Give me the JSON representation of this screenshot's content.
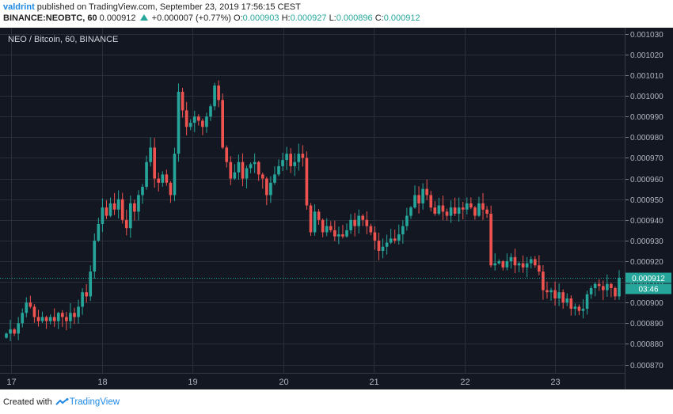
{
  "header": {
    "user": "valdrint",
    "published_text": "published on TradingView.com, September 23, 2019 17:56:15 CEST",
    "symbol_line": "BINANCE:NEOBTC, 60",
    "last_value": "0.000912",
    "change_text": "+0.000007 (+0.77%)",
    "o_label": "O:",
    "o_value": "0.000903",
    "h_label": "H:",
    "h_value": "0.000927",
    "l_label": "L:",
    "l_value": "0.000896",
    "c_label": "C:",
    "c_value": "0.000912"
  },
  "chart_title": "NEO / Bitcoin, 60, BINANCE",
  "footer": {
    "created_with": "Created with",
    "brand": "TradingView"
  },
  "colors": {
    "background": "#131722",
    "up": "#26a69a",
    "down": "#ef5350",
    "grid": "#2a2e39"
  },
  "chart_data": {
    "type": "candlestick",
    "title": "NEO / Bitcoin, 60, BINANCE",
    "x_ticks": [
      "17",
      "18",
      "19",
      "20",
      "21",
      "22",
      "23"
    ],
    "y_ticks": [
      "0.001030",
      "0.001020",
      "0.001010",
      "0.001000",
      "0.000990",
      "0.000980",
      "0.000970",
      "0.000960",
      "0.000950",
      "0.000940",
      "0.000930",
      "0.000920",
      "0.000910",
      "0.000900",
      "0.000890",
      "0.000880",
      "0.000870"
    ],
    "ylim": [
      0.000866,
      0.001033
    ],
    "last_price_label": "0.000912",
    "countdown_label": "03:46",
    "closes": [
      0.000885,
      0.000887,
      0.000885,
      0.00089,
      0.000895,
      0.0009,
      0.000898,
      0.000893,
      0.000891,
      0.000893,
      0.000891,
      0.000893,
      0.000891,
      0.000895,
      0.000893,
      0.000891,
      0.000895,
      0.000893,
      0.000898,
      0.000905,
      0.000903,
      0.000915,
      0.00093,
      0.000938,
      0.000946,
      0.000942,
      0.000948,
      0.000945,
      0.00095,
      0.00094,
      0.000936,
      0.000948,
      0.000944,
      0.000952,
      0.000956,
      0.000968,
      0.000975,
      0.00096,
      0.000958,
      0.000962,
      0.000958,
      0.000952,
      0.000972,
      0.001002,
      0.000993,
      0.000985,
      0.000987,
      0.00099,
      0.000988,
      0.000985,
      0.00099,
      0.000995,
      0.001005,
      0.000998,
      0.000975,
      0.000968,
      0.00096,
      0.000963,
      0.000968,
      0.00096,
      0.000965,
      0.000967,
      0.000968,
      0.000962,
      0.00096,
      0.000952,
      0.000958,
      0.000962,
      0.000966,
      0.000969,
      0.000972,
      0.000966,
      0.000968,
      0.000972,
      0.00097,
      0.000947,
      0.000934,
      0.000944,
      0.00094,
      0.000934,
      0.000937,
      0.000935,
      0.000932,
      0.000933,
      0.000932,
      0.000935,
      0.00094,
      0.000937,
      0.000942,
      0.00094,
      0.000937,
      0.000934,
      0.00093,
      0.000925,
      0.000927,
      0.000929,
      0.000931,
      0.00093,
      0.000933,
      0.000937,
      0.000942,
      0.000946,
      0.000952,
      0.000948,
      0.000955,
      0.000952,
      0.000946,
      0.000943,
      0.000947,
      0.000944,
      0.000942,
      0.000946,
      0.000943,
      0.000946,
      0.000945,
      0.000948,
      0.000946,
      0.000942,
      0.000948,
      0.000945,
      0.000943,
      0.000918,
      0.000919,
      0.00092,
      0.000917,
      0.00092,
      0.000922,
      0.000918,
      0.000919,
      0.000917,
      0.000919,
      0.000921,
      0.000918,
      0.000915,
      0.000906,
      0.000905,
      0.000906,
      0.000902,
      0.000905,
      0.0009,
      0.000902,
      0.000897,
      0.000898,
      0.000896,
      0.000897,
      0.000904,
      0.000907,
      0.000909,
      0.000908,
      0.000906,
      0.000909,
      0.000907,
      0.000903,
      0.000912
    ]
  }
}
